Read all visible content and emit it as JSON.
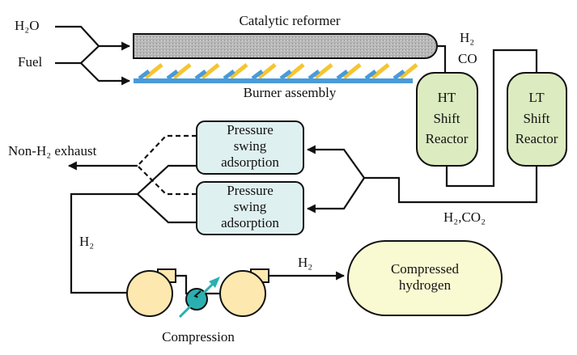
{
  "inputs": [
    "H₂O",
    "Fuel"
  ],
  "reformer": {
    "label": "Catalytic reformer",
    "burner": "Burner assembly"
  },
  "reformer_output": [
    "H₂",
    "CO"
  ],
  "reactors": [
    {
      "lines": [
        "HT",
        "Shift",
        "Reactor"
      ]
    },
    {
      "lines": [
        "LT",
        "Shift",
        "Reactor"
      ]
    }
  ],
  "shift_output": "H₂,CO₂",
  "psa": [
    {
      "lines": [
        "Pressure",
        "swing",
        "adsorption"
      ]
    },
    {
      "lines": [
        "Pressure",
        "swing",
        "adsorption"
      ]
    }
  ],
  "exhaust": "Non-H₂ exhaust",
  "psa_output": "H₂",
  "compression": "Compression",
  "compressor_output": "H₂",
  "storage": {
    "lines": [
      "Compressed",
      "hydrogen"
    ]
  }
}
